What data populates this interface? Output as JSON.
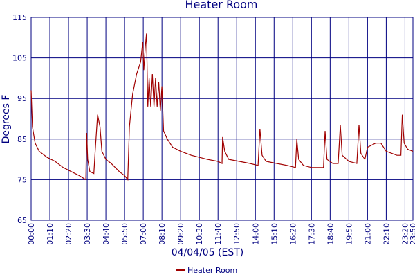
{
  "chart_data": {
    "type": "line",
    "title": "Heater Room",
    "x_label": "04/04/05 (EST)",
    "y_label": "Degrees F",
    "xlim": [
      0,
      1430
    ],
    "ylim": [
      65,
      115
    ],
    "xticks": [
      {
        "value": 0,
        "label": "00:00"
      },
      {
        "value": 70,
        "label": "01:10"
      },
      {
        "value": 140,
        "label": "02:20"
      },
      {
        "value": 210,
        "label": "03:30"
      },
      {
        "value": 280,
        "label": "04:40"
      },
      {
        "value": 350,
        "label": "05:50"
      },
      {
        "value": 420,
        "label": "07:00"
      },
      {
        "value": 490,
        "label": "08:10"
      },
      {
        "value": 560,
        "label": "09:20"
      },
      {
        "value": 630,
        "label": "10:30"
      },
      {
        "value": 700,
        "label": "11:40"
      },
      {
        "value": 770,
        "label": "12:50"
      },
      {
        "value": 840,
        "label": "14:00"
      },
      {
        "value": 910,
        "label": "15:10"
      },
      {
        "value": 980,
        "label": "16:20"
      },
      {
        "value": 1050,
        "label": "17:30"
      },
      {
        "value": 1120,
        "label": "18:40"
      },
      {
        "value": 1190,
        "label": "19:50"
      },
      {
        "value": 1260,
        "label": "21:00"
      },
      {
        "value": 1330,
        "label": "22:10"
      },
      {
        "value": 1400,
        "label": "23:20"
      },
      {
        "value": 1430,
        "label": "23:50"
      }
    ],
    "yticks": [
      65,
      75,
      85,
      95,
      105,
      115
    ],
    "grid": true,
    "x": [
      0,
      5,
      15,
      30,
      60,
      90,
      120,
      150,
      180,
      205,
      208,
      212,
      220,
      235,
      240,
      249,
      258,
      265,
      280,
      300,
      330,
      350,
      362,
      368,
      380,
      395,
      410,
      418,
      422,
      428,
      432,
      437,
      442,
      448,
      454,
      460,
      466,
      472,
      478,
      484,
      490,
      496,
      510,
      530,
      560,
      600,
      660,
      700,
      715,
      717,
      725,
      740,
      780,
      820,
      850,
      857,
      865,
      880,
      920,
      960,
      990,
      995,
      1002,
      1020,
      1050,
      1080,
      1095,
      1101,
      1108,
      1130,
      1150,
      1158,
      1165,
      1190,
      1220,
      1228,
      1235,
      1250,
      1260,
      1290,
      1310,
      1330,
      1370,
      1385,
      1390,
      1397,
      1410,
      1430
    ],
    "series": [
      {
        "name": "Heater Room",
        "color": "#a00000",
        "values": [
          97,
          88,
          84,
          82,
          80.5,
          79.5,
          78,
          77,
          76,
          75,
          86.5,
          80,
          77,
          76.5,
          82,
          91,
          88,
          82,
          80,
          79,
          77,
          76,
          75,
          88,
          96,
          101,
          104,
          109,
          102,
          108,
          111,
          93,
          100,
          93,
          101,
          93,
          100,
          93,
          99,
          92,
          98,
          87,
          85,
          83,
          82,
          81,
          80,
          79.5,
          79,
          85.5,
          82,
          80,
          79.5,
          79,
          78.5,
          87.5,
          81,
          79.5,
          79,
          78.5,
          78,
          85,
          80,
          78.5,
          78,
          78,
          78,
          87,
          80,
          79,
          79,
          88.5,
          81,
          79.5,
          79,
          88.5,
          81.5,
          80,
          83,
          84,
          84,
          82,
          81,
          81,
          91,
          84,
          82.5,
          82
        ]
      }
    ]
  }
}
